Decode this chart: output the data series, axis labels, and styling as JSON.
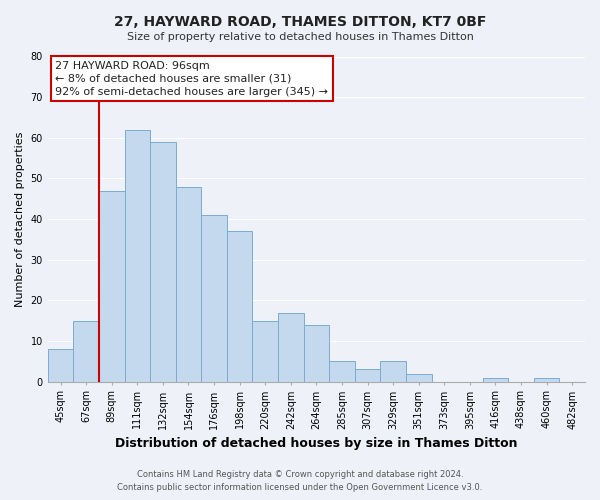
{
  "title": "27, HAYWARD ROAD, THAMES DITTON, KT7 0BF",
  "subtitle": "Size of property relative to detached houses in Thames Ditton",
  "xlabel": "Distribution of detached houses by size in Thames Ditton",
  "ylabel": "Number of detached properties",
  "bin_labels": [
    "45sqm",
    "67sqm",
    "89sqm",
    "111sqm",
    "132sqm",
    "154sqm",
    "176sqm",
    "198sqm",
    "220sqm",
    "242sqm",
    "264sqm",
    "285sqm",
    "307sqm",
    "329sqm",
    "351sqm",
    "373sqm",
    "395sqm",
    "416sqm",
    "438sqm",
    "460sqm",
    "482sqm"
  ],
  "bar_heights": [
    8,
    15,
    47,
    62,
    59,
    48,
    41,
    37,
    15,
    17,
    14,
    5,
    3,
    5,
    2,
    0,
    0,
    1,
    0,
    1,
    0
  ],
  "bar_color": "#c5d9ee",
  "bar_edge_color": "#7aadd4",
  "vline_x_idx": 2,
  "vline_color": "#cc0000",
  "ylim": [
    0,
    80
  ],
  "yticks": [
    0,
    10,
    20,
    30,
    40,
    50,
    60,
    70,
    80
  ],
  "annotation_text": "27 HAYWARD ROAD: 96sqm\n← 8% of detached houses are smaller (31)\n92% of semi-detached houses are larger (345) →",
  "annotation_box_color": "#ffffff",
  "annotation_box_edge": "#cc0000",
  "footer_line1": "Contains HM Land Registry data © Crown copyright and database right 2024.",
  "footer_line2": "Contains public sector information licensed under the Open Government Licence v3.0.",
  "background_color": "#eef2f8",
  "grid_color": "#ffffff",
  "title_fontsize": 10,
  "subtitle_fontsize": 8,
  "xlabel_fontsize": 9,
  "ylabel_fontsize": 8,
  "tick_fontsize": 7,
  "footer_fontsize": 6,
  "annotation_fontsize": 8
}
